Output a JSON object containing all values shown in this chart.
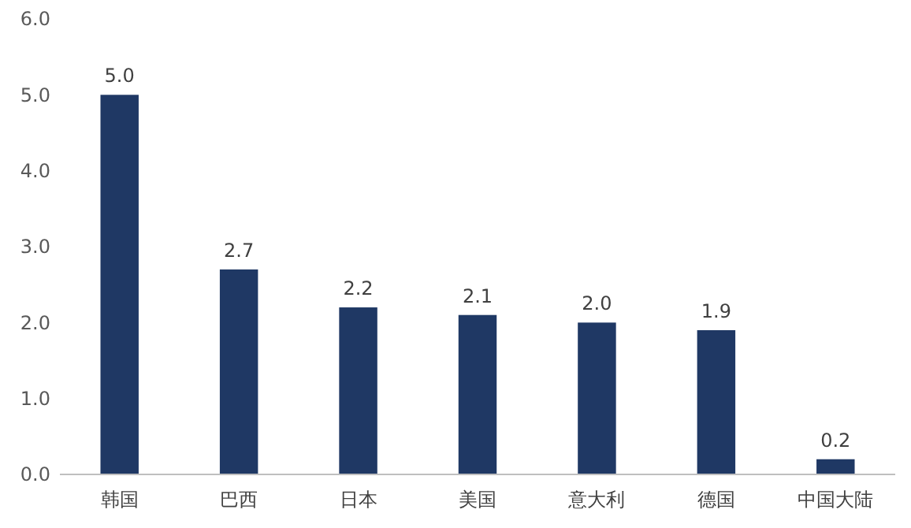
{
  "chart_data": {
    "type": "bar",
    "categories": [
      "韩国",
      "巴西",
      "日本",
      "美国",
      "意大利",
      "德国",
      "中国大陆"
    ],
    "values": [
      5.0,
      2.7,
      2.2,
      2.1,
      2.0,
      1.9,
      0.2
    ],
    "value_labels": [
      "5.0",
      "2.7",
      "2.2",
      "2.1",
      "2.0",
      "1.9",
      "0.2"
    ],
    "color": "#1f3864",
    "ylim": [
      0,
      6
    ],
    "yticks": [
      {
        "value": 0,
        "label": "0.0"
      },
      {
        "value": 1,
        "label": "1.0"
      },
      {
        "value": 2,
        "label": "2.0"
      },
      {
        "value": 3,
        "label": "3.0"
      },
      {
        "value": 4,
        "label": "4.0"
      },
      {
        "value": 5,
        "label": "5.0"
      },
      {
        "value": 6,
        "label": "6.0"
      }
    ],
    "grid": false
  }
}
